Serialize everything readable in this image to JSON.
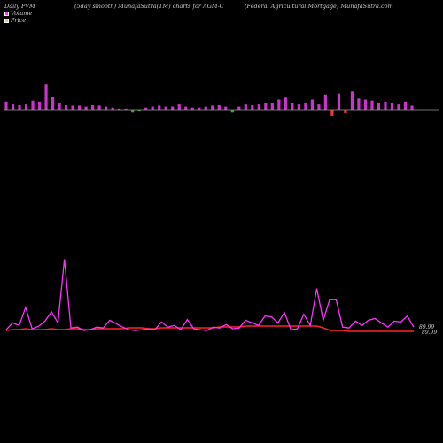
{
  "header": {
    "left": "Daily PVM",
    "center": "(5day smooth) MunafaSutra(TM) charts for AGM-C",
    "right": "(Federal Agricultural Mortgage) MunafaSutra.com"
  },
  "legend": {
    "volume_label": "Volume",
    "price_label": "Price",
    "volume_color": "#ff33ff",
    "price_color": "#ffbb77"
  },
  "colors": {
    "background": "#000000",
    "up_bar": "#cc33cc",
    "down_bar_green": "#33aa33",
    "down_bar_red": "#ff3333",
    "volume_line": "#ff33ff",
    "price_line": "#ff2222",
    "axis_line": "#999999"
  },
  "chart_data": {
    "type": "bar+line",
    "title": "(5day smooth) MunafaSutra(TM) charts for AGM-C",
    "price_labels": [
      "89.99",
      "89.99"
    ],
    "pvm_bars": [
      {
        "v": 8,
        "c": "up"
      },
      {
        "v": 6,
        "c": "up"
      },
      {
        "v": 5,
        "c": "up"
      },
      {
        "v": 6,
        "c": "up"
      },
      {
        "v": 9,
        "c": "up"
      },
      {
        "v": 8,
        "c": "up"
      },
      {
        "v": 25,
        "c": "up"
      },
      {
        "v": 13,
        "c": "up"
      },
      {
        "v": 7,
        "c": "up"
      },
      {
        "v": 5,
        "c": "up"
      },
      {
        "v": 4,
        "c": "up"
      },
      {
        "v": 4,
        "c": "up"
      },
      {
        "v": 3,
        "c": "up"
      },
      {
        "v": 5,
        "c": "up"
      },
      {
        "v": 4,
        "c": "up"
      },
      {
        "v": 3,
        "c": "up"
      },
      {
        "v": 2,
        "c": "up"
      },
      {
        "v": 1,
        "c": "up"
      },
      {
        "v": 1,
        "c": "up"
      },
      {
        "v": -2,
        "c": "green"
      },
      {
        "v": -1,
        "c": "green"
      },
      {
        "v": 2,
        "c": "up"
      },
      {
        "v": 3,
        "c": "up"
      },
      {
        "v": 4,
        "c": "up"
      },
      {
        "v": 3,
        "c": "up"
      },
      {
        "v": 3,
        "c": "up"
      },
      {
        "v": 6,
        "c": "up"
      },
      {
        "v": 3,
        "c": "up"
      },
      {
        "v": 2,
        "c": "up"
      },
      {
        "v": 2,
        "c": "up"
      },
      {
        "v": 3,
        "c": "up"
      },
      {
        "v": 4,
        "c": "up"
      },
      {
        "v": 5,
        "c": "up"
      },
      {
        "v": 3,
        "c": "up"
      },
      {
        "v": -2,
        "c": "green"
      },
      {
        "v": 3,
        "c": "up"
      },
      {
        "v": 6,
        "c": "up"
      },
      {
        "v": 5,
        "c": "up"
      },
      {
        "v": 6,
        "c": "up"
      },
      {
        "v": 7,
        "c": "up"
      },
      {
        "v": 7,
        "c": "up"
      },
      {
        "v": 10,
        "c": "up"
      },
      {
        "v": 12,
        "c": "up"
      },
      {
        "v": 7,
        "c": "up"
      },
      {
        "v": 6,
        "c": "up"
      },
      {
        "v": 7,
        "c": "up"
      },
      {
        "v": 10,
        "c": "up"
      },
      {
        "v": 6,
        "c": "up"
      },
      {
        "v": 15,
        "c": "up"
      },
      {
        "v": -6,
        "c": "red"
      },
      {
        "v": 16,
        "c": "up"
      },
      {
        "v": -3,
        "c": "red"
      },
      {
        "v": 18,
        "c": "up"
      },
      {
        "v": 11,
        "c": "up"
      },
      {
        "v": 10,
        "c": "up"
      },
      {
        "v": 9,
        "c": "up"
      },
      {
        "v": 7,
        "c": "up"
      },
      {
        "v": 8,
        "c": "up"
      },
      {
        "v": 7,
        "c": "up"
      },
      {
        "v": 6,
        "c": "up"
      },
      {
        "v": 8,
        "c": "up"
      },
      {
        "v": 4,
        "c": "up"
      }
    ],
    "volume_series": [
      4,
      12,
      9,
      30,
      5,
      8,
      14,
      25,
      12,
      86,
      6,
      7,
      3,
      4,
      7,
      6,
      15,
      11,
      7,
      4,
      3,
      4,
      5,
      4,
      13,
      7,
      9,
      4,
      16,
      5,
      4,
      3,
      7,
      6,
      10,
      5,
      6,
      15,
      12,
      9,
      20,
      19,
      12,
      24,
      4,
      5,
      22,
      9,
      52,
      15,
      39,
      39,
      7,
      6,
      14,
      9,
      15,
      17,
      12,
      7,
      14,
      13,
      20,
      7
    ],
    "price_series": [
      2,
      3,
      3,
      4,
      3,
      3,
      3,
      4,
      3,
      3,
      4,
      4,
      3,
      3,
      4,
      4,
      4,
      4,
      4,
      5,
      5,
      5,
      4,
      4,
      5,
      5,
      5,
      5,
      5,
      5,
      5,
      5,
      5,
      6,
      6,
      6,
      6,
      7,
      7,
      7,
      7,
      7,
      7,
      7,
      7,
      7,
      7,
      7,
      7,
      5,
      2,
      2,
      2,
      1,
      1,
      1,
      1,
      1,
      1,
      1,
      1,
      1,
      1,
      1
    ]
  }
}
